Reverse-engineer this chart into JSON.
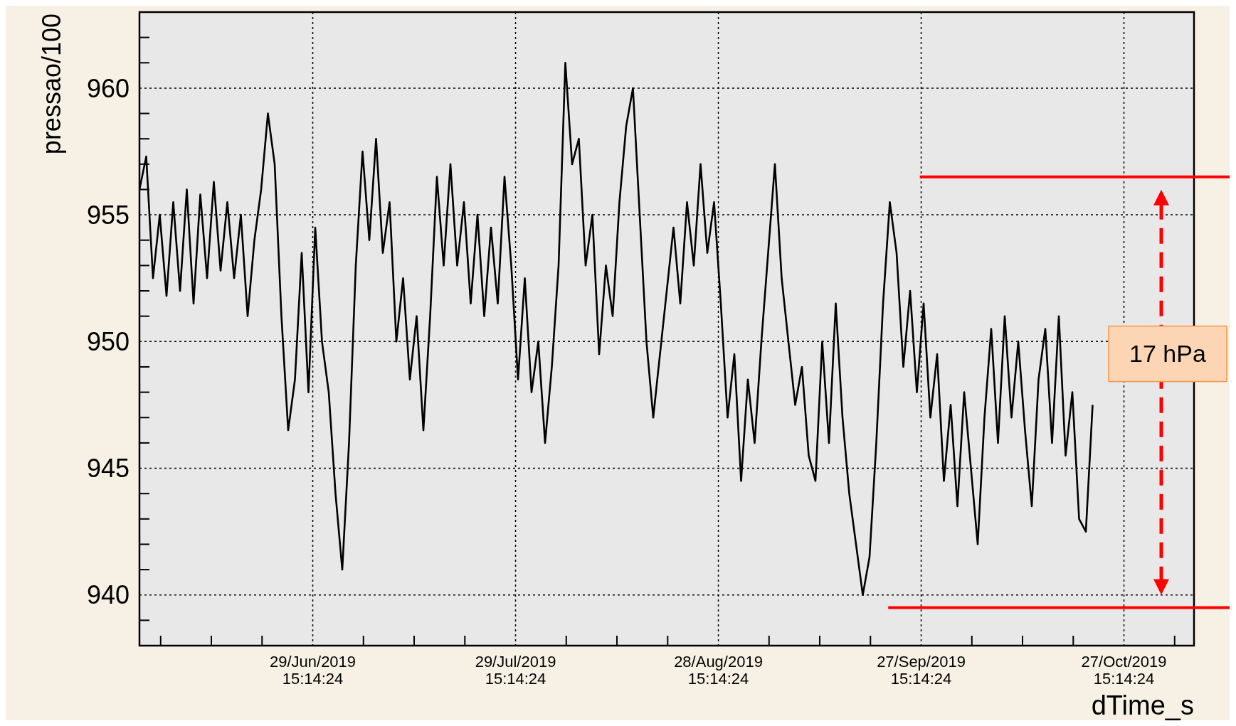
{
  "chart_data": {
    "type": "line",
    "ylabel": "pressao/100",
    "xlabel": "dTime_s",
    "annotations": [
      "17 hPa"
    ],
    "grid": true,
    "xlim": [
      "2019-06-04T00:00",
      "2019-11-07T00:00"
    ],
    "ylim": [
      938,
      963
    ],
    "xticks": [
      {
        "value": "2019-06-07T03:14",
        "label": null
      },
      {
        "value": "2019-06-14T15:14",
        "label": null
      },
      {
        "value": "2019-06-22T03:14",
        "label": null
      },
      {
        "value": "2019-06-29T15:14",
        "label": "29/Jun/2019 15:14:24"
      },
      {
        "value": "2019-07-07T03:14",
        "label": null
      },
      {
        "value": "2019-07-14T15:14",
        "label": null
      },
      {
        "value": "2019-07-22T03:14",
        "label": null
      },
      {
        "value": "2019-07-29T15:14",
        "label": "29/Jul/2019 15:14:24"
      },
      {
        "value": "2019-08-06T03:14",
        "label": null
      },
      {
        "value": "2019-08-13T15:14",
        "label": null
      },
      {
        "value": "2019-08-21T03:14",
        "label": null
      },
      {
        "value": "2019-08-28T15:14",
        "label": "28/Aug/2019 15:14:24"
      },
      {
        "value": "2019-09-05T03:14",
        "label": null
      },
      {
        "value": "2019-09-12T15:14",
        "label": null
      },
      {
        "value": "2019-09-20T03:14",
        "label": null
      },
      {
        "value": "2019-09-27T15:14",
        "label": "27/Sep/2019 15:14:24"
      },
      {
        "value": "2019-10-05T03:14",
        "label": null
      },
      {
        "value": "2019-10-12T15:14",
        "label": null
      },
      {
        "value": "2019-10-20T03:14",
        "label": null
      },
      {
        "value": "2019-10-27T15:14",
        "label": "27/Oct/2019 15:14:24"
      },
      {
        "value": "2019-11-04T03:14",
        "label": null
      }
    ],
    "yticks": [
      {
        "value": 938,
        "label": null
      },
      {
        "value": 939,
        "label": null
      },
      940,
      {
        "value": 941,
        "label": null
      },
      {
        "value": 942,
        "label": null
      },
      {
        "value": 943,
        "label": null
      },
      {
        "value": 944,
        "label": null
      },
      945,
      {
        "value": 946,
        "label": null
      },
      {
        "value": 947,
        "label": null
      },
      {
        "value": 948,
        "label": null
      },
      {
        "value": 949,
        "label": null
      },
      950,
      {
        "value": 951,
        "label": null
      },
      {
        "value": 952,
        "label": null
      },
      {
        "value": 953,
        "label": null
      },
      {
        "value": 954,
        "label": null
      },
      955,
      {
        "value": 956,
        "label": null
      },
      {
        "value": 957,
        "label": null
      },
      {
        "value": 958,
        "label": null
      },
      {
        "value": 959,
        "label": null
      },
      960,
      {
        "value": 961,
        "label": null
      },
      {
        "value": 962,
        "label": null
      },
      {
        "value": 963,
        "label": null
      }
    ],
    "ref_lines": [
      {
        "axis": "y",
        "value": 956.5,
        "color": "#ff0000"
      },
      {
        "axis": "y",
        "value": 939.5,
        "color": "#ff0000"
      }
    ],
    "x": [
      "2019-06-04",
      "2019-06-05",
      "2019-06-06",
      "2019-06-07",
      "2019-06-08",
      "2019-06-09",
      "2019-06-10",
      "2019-06-11",
      "2019-06-12",
      "2019-06-13",
      "2019-06-14",
      "2019-06-15",
      "2019-06-16",
      "2019-06-17",
      "2019-06-18",
      "2019-06-19",
      "2019-06-20",
      "2019-06-21",
      "2019-06-22",
      "2019-06-23",
      "2019-06-24",
      "2019-06-25",
      "2019-06-26",
      "2019-06-27",
      "2019-06-28",
      "2019-06-29",
      "2019-06-30",
      "2019-07-01",
      "2019-07-02",
      "2019-07-03",
      "2019-07-04",
      "2019-07-05",
      "2019-07-06",
      "2019-07-07",
      "2019-07-08",
      "2019-07-09",
      "2019-07-10",
      "2019-07-11",
      "2019-07-12",
      "2019-07-13",
      "2019-07-14",
      "2019-07-15",
      "2019-07-16",
      "2019-07-17",
      "2019-07-18",
      "2019-07-19",
      "2019-07-20",
      "2019-07-21",
      "2019-07-22",
      "2019-07-23",
      "2019-07-24",
      "2019-07-25",
      "2019-07-26",
      "2019-07-27",
      "2019-07-28",
      "2019-07-29",
      "2019-07-30",
      "2019-07-31",
      "2019-08-01",
      "2019-08-02",
      "2019-08-03",
      "2019-08-04",
      "2019-08-05",
      "2019-08-06",
      "2019-08-07",
      "2019-08-08",
      "2019-08-09",
      "2019-08-10",
      "2019-08-11",
      "2019-08-12",
      "2019-08-13",
      "2019-08-14",
      "2019-08-15",
      "2019-08-16",
      "2019-08-17",
      "2019-08-18",
      "2019-08-19",
      "2019-08-20",
      "2019-08-21",
      "2019-08-22",
      "2019-08-23",
      "2019-08-24",
      "2019-08-25",
      "2019-08-26",
      "2019-08-27",
      "2019-08-28",
      "2019-08-29",
      "2019-08-30",
      "2019-08-31",
      "2019-09-01",
      "2019-09-02",
      "2019-09-03",
      "2019-09-04",
      "2019-09-05",
      "2019-09-06",
      "2019-09-07",
      "2019-09-08",
      "2019-09-09",
      "2019-09-10",
      "2019-09-11",
      "2019-09-12",
      "2019-09-13",
      "2019-09-14",
      "2019-09-15",
      "2019-09-16",
      "2019-09-17",
      "2019-09-18",
      "2019-09-19",
      "2019-09-20",
      "2019-09-21",
      "2019-09-22",
      "2019-09-23",
      "2019-09-24",
      "2019-09-25",
      "2019-09-26",
      "2019-09-27",
      "2019-09-28",
      "2019-09-29",
      "2019-09-30",
      "2019-10-01",
      "2019-10-02",
      "2019-10-03",
      "2019-10-04",
      "2019-10-05",
      "2019-10-06",
      "2019-10-07",
      "2019-10-08",
      "2019-10-09",
      "2019-10-10",
      "2019-10-11",
      "2019-10-12",
      "2019-10-13",
      "2019-10-14",
      "2019-10-15",
      "2019-10-16",
      "2019-10-17",
      "2019-10-18",
      "2019-10-19",
      "2019-10-20",
      "2019-10-21",
      "2019-10-22",
      "2019-10-23"
    ],
    "series": [
      {
        "color": "#000000",
        "values": [
          956,
          957.3,
          952.5,
          955,
          951.8,
          955.5,
          952,
          956,
          951.5,
          955.8,
          952.5,
          956.3,
          952.8,
          955.5,
          952.5,
          955,
          951,
          954,
          956,
          959,
          957,
          951,
          946.5,
          948.5,
          953.5,
          948,
          954.5,
          950,
          948,
          944,
          941,
          946,
          953,
          957.5,
          954,
          958,
          953.5,
          955.5,
          950,
          952.5,
          948.5,
          951,
          946.5,
          951,
          956.5,
          953,
          957,
          953,
          955.5,
          951.5,
          955,
          951,
          954.5,
          951.5,
          956.5,
          953,
          948.5,
          952.5,
          948,
          950,
          946,
          949,
          953,
          961,
          957,
          958,
          953,
          955,
          949.5,
          953,
          951,
          955.5,
          958.5,
          960,
          955,
          950,
          947,
          949.5,
          952,
          954.5,
          951.5,
          955.5,
          953,
          957,
          953.5,
          955.5,
          951.5,
          947,
          949.5,
          944.5,
          948.5,
          946,
          950,
          953.5,
          957,
          952.5,
          950,
          947.5,
          949,
          945.5,
          944.5,
          950,
          946,
          951.5,
          947,
          944,
          942,
          940,
          941.5,
          946,
          951.5,
          955.5,
          953.5,
          949,
          952,
          948,
          951.5,
          947,
          949.5,
          944.5,
          947.5,
          943.5,
          948,
          945,
          942,
          947,
          950.5,
          946,
          951,
          947,
          950,
          946.5,
          943.5,
          948.5,
          950.5,
          946,
          951,
          945.5,
          948,
          943,
          942.5,
          947.5
        ]
      }
    ]
  }
}
